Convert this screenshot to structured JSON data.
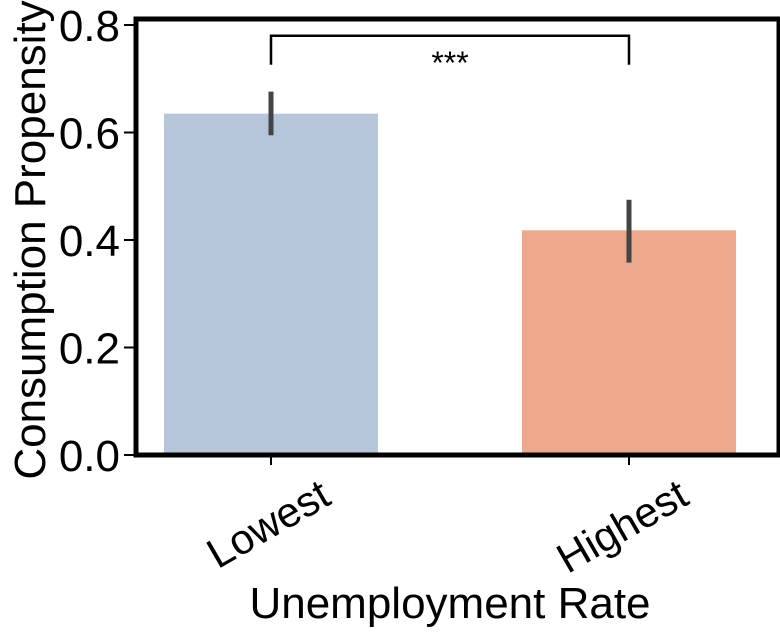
{
  "chart_data": {
    "type": "bar",
    "title": "",
    "xlabel": "Unemployment Rate",
    "ylabel": "Consumption Propensity",
    "categories": [
      "Lowest",
      "Highest"
    ],
    "values": [
      0.635,
      0.418
    ],
    "error_bars": [
      {
        "low": 0.595,
        "high": 0.676
      },
      {
        "low": 0.358,
        "high": 0.475
      }
    ],
    "colors": [
      "#b5c5da",
      "#eda78a"
    ],
    "error_bar_color": "#444444",
    "ylim": [
      0,
      0.8
    ],
    "yticks": [
      0.0,
      0.2,
      0.4,
      0.6,
      0.8
    ],
    "ytick_labels": [
      "0.0",
      "0.2",
      "0.4",
      "0.6",
      "0.8"
    ],
    "grid": false,
    "significance": {
      "between": [
        "Lowest",
        "Highest"
      ],
      "label": "***",
      "y": 0.78
    }
  }
}
